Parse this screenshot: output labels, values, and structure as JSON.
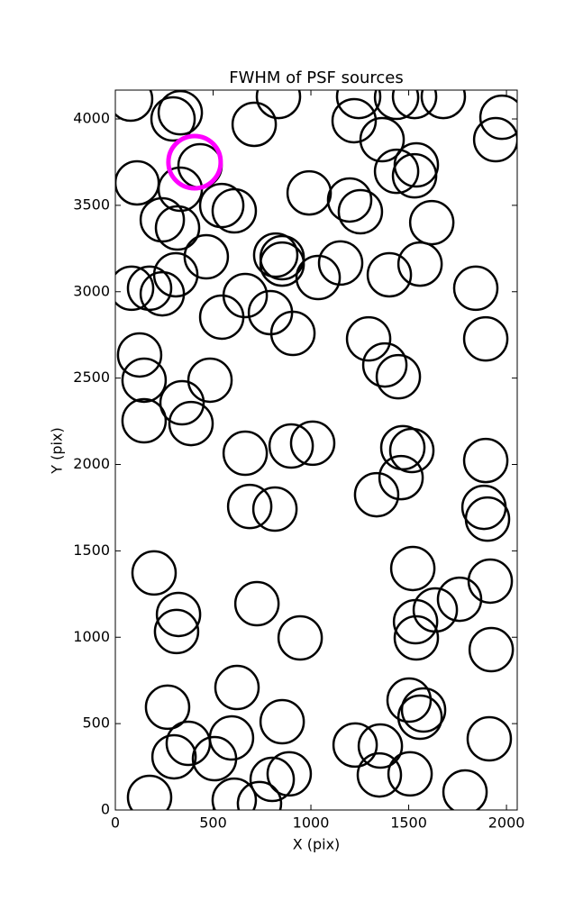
{
  "chart_data": {
    "type": "scatter",
    "title": "FWHM of PSF sources",
    "x_label": "X (pix)",
    "y_label": "Y (pix)",
    "xlim": [
      0,
      2055
    ],
    "ylim": [
      0,
      4167
    ],
    "xticks": [
      0,
      500,
      1000,
      1500,
      2000
    ],
    "yticks": [
      0,
      500,
      1000,
      1500,
      2000,
      2500,
      3000,
      3500,
      4000
    ],
    "series": [
      {
        "color": "#000000",
        "x": [
          78,
          332,
          295,
          710,
          834,
          1221,
          1244,
          1438,
          1530,
          1677,
          1364,
          1977,
          1945,
          433,
          332,
          240,
          318,
          544,
          608,
          111,
          991,
          1198,
          1253,
          1438,
          1539,
          1530,
          1618,
          465,
          309,
          83,
          175,
          240,
          820,
          853,
          853,
          1037,
          1152,
          1401,
          1558,
          1843,
          664,
          793,
          908,
          544,
          124,
          147,
          484,
          341,
          387,
          147,
          1295,
          1378,
          1447,
          1894,
          664,
          899,
          1009,
          1470,
          1516,
          1461,
          1336,
          1894,
          1885,
          1903,
          687,
          816,
          198,
          1521,
          1917,
          1760,
          1636,
          1535,
          1539,
          1922,
          724,
          323,
          313,
          945,
          622,
          267,
          853,
          594,
          373,
          300,
          507,
          1502,
          1576,
          1558,
          1912,
          1226,
          1355,
          1350,
          1507,
          889,
          802,
          175,
          608,
          737,
          1788
        ],
        "values": [
          4115,
          4036,
          4000,
          3969,
          4130,
          3990,
          4130,
          4125,
          4130,
          4130,
          3880,
          4010,
          3880,
          3729,
          3593,
          3416,
          3369,
          3499,
          3468,
          3630,
          3572,
          3531,
          3463,
          3697,
          3734,
          3671,
          3400,
          3202,
          3098,
          3020,
          3020,
          2988,
          3212,
          3197,
          3160,
          3082,
          3166,
          3098,
          3160,
          3020,
          2978,
          2879,
          2759,
          2853,
          2634,
          2488,
          2488,
          2357,
          2237,
          2253,
          2727,
          2576,
          2508,
          2727,
          2065,
          2107,
          2123,
          2097,
          2081,
          1924,
          1825,
          2023,
          1752,
          1684,
          1757,
          1742,
          1372,
          1398,
          1325,
          1220,
          1158,
          1090,
          996,
          928,
          1194,
          1132,
          1033,
          996,
          709,
          595,
          511,
          417,
          386,
          308,
          297,
          636,
          579,
          537,
          412,
          376,
          370,
          203,
          209,
          209,
          177,
          73,
          57,
          37,
          104
        ]
      },
      {
        "color": "#ff00ff",
        "x": [
          405
        ],
        "values": [
          3750
        ]
      }
    ]
  }
}
